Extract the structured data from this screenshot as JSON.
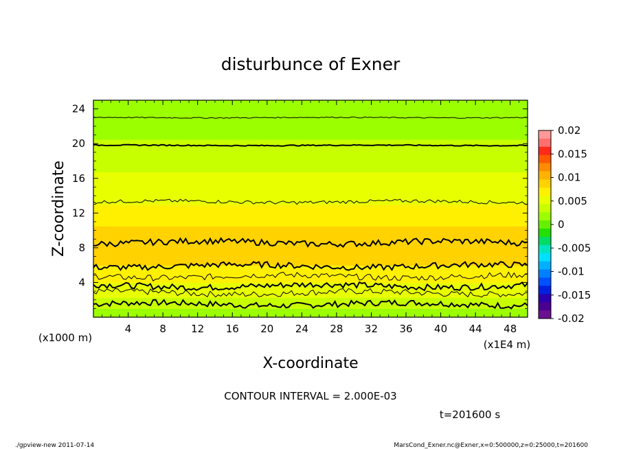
{
  "chart_data": {
    "type": "heatmap",
    "title": "disturbunce of Exner",
    "xlabel": "X-coordinate",
    "ylabel": "Z-coordinate",
    "x_unit": "(x1E4 m)",
    "y_unit": "(x1000 m)",
    "xlim": [
      0,
      50
    ],
    "ylim": [
      0,
      25
    ],
    "x_ticks": [
      "4",
      "8",
      "12",
      "16",
      "20",
      "24",
      "28",
      "32",
      "36",
      "40",
      "44",
      "48"
    ],
    "x_tick_values": [
      4,
      8,
      12,
      16,
      20,
      24,
      28,
      32,
      36,
      40,
      44,
      48
    ],
    "y_ticks": [
      "4",
      "8",
      "12",
      "16",
      "20",
      "24"
    ],
    "y_tick_values": [
      4,
      8,
      12,
      16,
      20,
      24
    ],
    "colorbar": {
      "labels": [
        "0.02",
        "0.015",
        "0.01",
        "0.005",
        "0",
        "-0.005",
        "-0.01",
        "-0.015",
        "-0.02"
      ],
      "values": [
        0.02,
        0.015,
        0.01,
        0.005,
        0,
        -0.005,
        -0.01,
        -0.015,
        -0.02
      ],
      "colors": [
        "#ff9999",
        "#ff6f6f",
        "#ff2a1a",
        "#ff5a00",
        "#ff8c00",
        "#ffb300",
        "#ffd200",
        "#fff000",
        "#e8ff00",
        "#c8ff00",
        "#9cff00",
        "#66f000",
        "#22e000",
        "#00dc64",
        "#00e4c0",
        "#00e0ff",
        "#00b0ff",
        "#0080ff",
        "#0050ff",
        "#0020e0",
        "#2a00b0",
        "#4a0090",
        "#6a1090"
      ],
      "min": -0.02,
      "max": 0.02
    },
    "profile_z": [
      0,
      1,
      2,
      3,
      4,
      5,
      6,
      7,
      8,
      9,
      10,
      11,
      12,
      13,
      14,
      15,
      16,
      17,
      18,
      19,
      20,
      21,
      22,
      23,
      24,
      25
    ],
    "profile_values": [
      0.001,
      0.0025,
      0.004,
      0.0053,
      0.006,
      0.0068,
      0.0078,
      0.0088,
      0.0092,
      0.009,
      0.0082,
      0.0075,
      0.0068,
      0.006,
      0.0055,
      0.005,
      0.0046,
      0.0042,
      0.0038,
      0.0033,
      0.0028,
      0.0024,
      0.002,
      0.0016,
      0.0012,
      0.001
    ],
    "contour_levels_z": [
      1.5,
      2.8,
      3.6,
      4.7,
      5.9,
      8.6,
      13.3,
      19.8,
      23.0
    ],
    "contour_bold": [
      true,
      false,
      true,
      false,
      true,
      true,
      false,
      true,
      false
    ],
    "grid": false,
    "contour_interval": "CONTOUR INTERVAL = 2.000E-03",
    "time_label": "t=201600 s"
  },
  "footer": {
    "left": "./gpview-new   2011-07-14",
    "right": "MarsCond_Exner.nc@Exner,x=0:500000,z=0:25000,t=201600"
  }
}
